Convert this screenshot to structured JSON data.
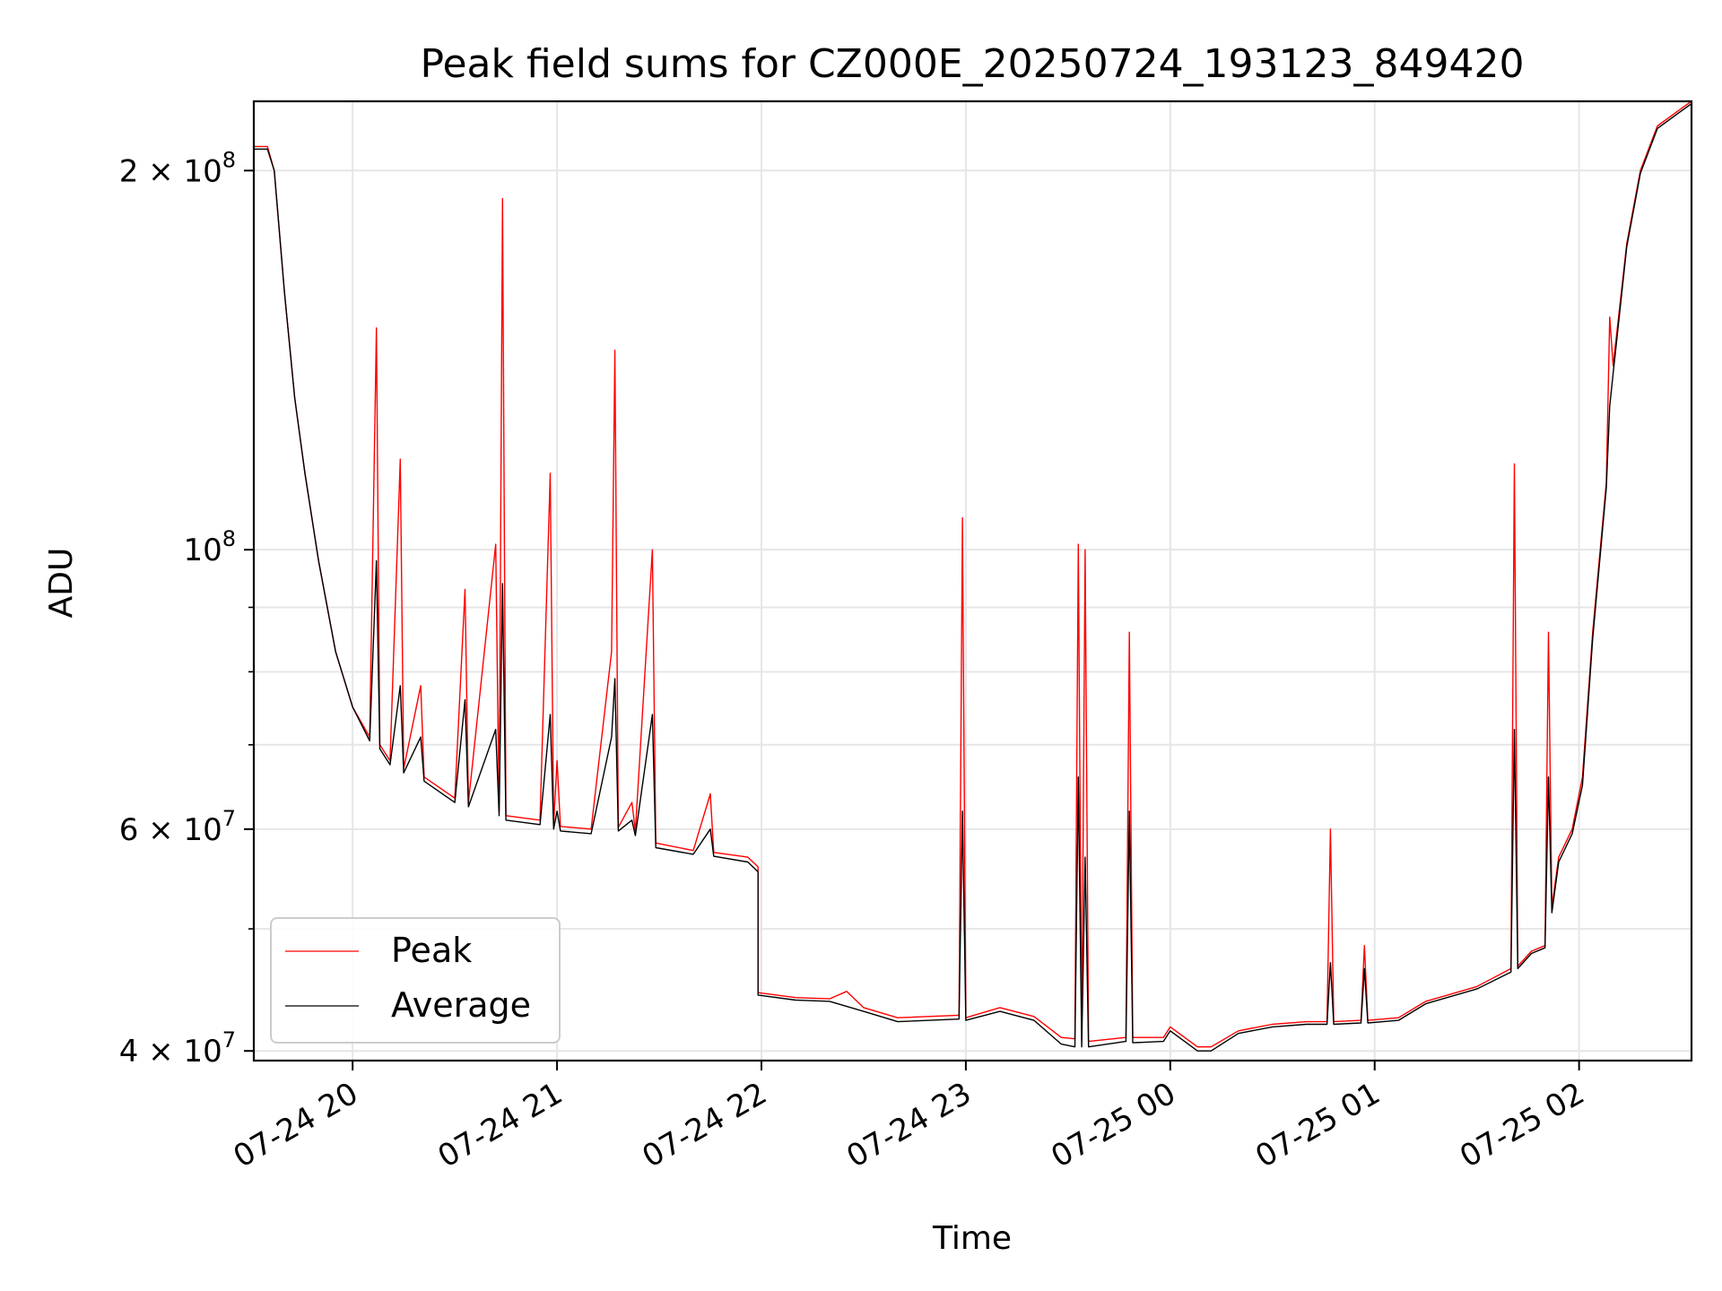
{
  "chart_data": {
    "type": "line",
    "title": "Peak field sums for CZ000E_20250724_193123_849420",
    "xlabel": "Time",
    "ylabel": "ADU",
    "y_scale": "log",
    "ylim": [
      39300000,
      227000000
    ],
    "xlim": [
      "2025-07-24 19:31",
      "2025-07-25 02:33"
    ],
    "grid": true,
    "legend_placement": "lower-left",
    "x_ticks": [
      {
        "t": "2025-07-24 20:00",
        "label": "07-24 20"
      },
      {
        "t": "2025-07-24 21:00",
        "label": "07-24 21"
      },
      {
        "t": "2025-07-24 22:00",
        "label": "07-24 22"
      },
      {
        "t": "2025-07-24 23:00",
        "label": "07-24 23"
      },
      {
        "t": "2025-07-25 00:00",
        "label": "07-25 00"
      },
      {
        "t": "2025-07-25 01:00",
        "label": "07-25 01"
      },
      {
        "t": "2025-07-25 02:00",
        "label": "07-25 02"
      }
    ],
    "y_major_ticks": [
      {
        "v": 40000000,
        "base": "4",
        "exp": "7"
      },
      {
        "v": 60000000,
        "base": "6",
        "exp": "7"
      },
      {
        "v": 100000000,
        "base": "",
        "exp": "8"
      },
      {
        "v": 200000000,
        "base": "2",
        "exp": "8"
      }
    ],
    "y_minor_ticks": [
      50000000,
      70000000,
      80000000,
      90000000
    ],
    "series": [
      {
        "name": "Peak",
        "color": "#ff0000",
        "points": [
          [
            "2025-07-24 19:31",
            209000000
          ],
          [
            "2025-07-24 19:35",
            209000000
          ],
          [
            "2025-07-24 19:37",
            200000000
          ],
          [
            "2025-07-24 19:40",
            160000000
          ],
          [
            "2025-07-24 19:43",
            132000000
          ],
          [
            "2025-07-24 19:46",
            115000000
          ],
          [
            "2025-07-24 19:50",
            98000000
          ],
          [
            "2025-07-24 19:55",
            83000000
          ],
          [
            "2025-07-24 20:00",
            75000000
          ],
          [
            "2025-07-24 20:05",
            71000000
          ],
          [
            "2025-07-24 20:07",
            150000000
          ],
          [
            "2025-07-24 20:08",
            70000000
          ],
          [
            "2025-07-24 20:11",
            68000000
          ],
          [
            "2025-07-24 20:14",
            118000000
          ],
          [
            "2025-07-24 20:15",
            67000000
          ],
          [
            "2025-07-24 20:20",
            78000000
          ],
          [
            "2025-07-24 20:21",
            66000000
          ],
          [
            "2025-07-24 20:30",
            63500000
          ],
          [
            "2025-07-24 20:33",
            93000000
          ],
          [
            "2025-07-24 20:34",
            63000000
          ],
          [
            "2025-07-24 20:42",
            101000000
          ],
          [
            "2025-07-24 20:43",
            62000000
          ],
          [
            "2025-07-24 20:44",
            190000000
          ],
          [
            "2025-07-24 20:45",
            61500000
          ],
          [
            "2025-07-24 20:55",
            61000000
          ],
          [
            "2025-07-24 20:58",
            115000000
          ],
          [
            "2025-07-24 20:59",
            60500000
          ],
          [
            "2025-07-24 21:00",
            68000000
          ],
          [
            "2025-07-24 21:01",
            60300000
          ],
          [
            "2025-07-24 21:10",
            60000000
          ],
          [
            "2025-07-24 21:16",
            83000000
          ],
          [
            "2025-07-24 21:17",
            144000000
          ],
          [
            "2025-07-24 21:18",
            60200000
          ],
          [
            "2025-07-24 21:22",
            63000000
          ],
          [
            "2025-07-24 21:23",
            59800000
          ],
          [
            "2025-07-24 21:28",
            100000000
          ],
          [
            "2025-07-24 21:29",
            58500000
          ],
          [
            "2025-07-24 21:40",
            57700000
          ],
          [
            "2025-07-24 21:45",
            64000000
          ],
          [
            "2025-07-24 21:46",
            57500000
          ],
          [
            "2025-07-24 21:56",
            57000000
          ],
          [
            "2025-07-24 21:59",
            56000000
          ],
          [
            "2025-07-24 21:59",
            44500000
          ],
          [
            "2025-07-24 22:10",
            44100000
          ],
          [
            "2025-07-24 22:20",
            44000000
          ],
          [
            "2025-07-24 22:25",
            44600000
          ],
          [
            "2025-07-24 22:30",
            43300000
          ],
          [
            "2025-07-24 22:40",
            42500000
          ],
          [
            "2025-07-24 22:58",
            42700000
          ],
          [
            "2025-07-24 22:59",
            106000000
          ],
          [
            "2025-07-24 23:00",
            42500000
          ],
          [
            "2025-07-24 23:10",
            43300000
          ],
          [
            "2025-07-24 23:20",
            42600000
          ],
          [
            "2025-07-24 23:28",
            41000000
          ],
          [
            "2025-07-24 23:32",
            40900000
          ],
          [
            "2025-07-24 23:33",
            101000000
          ],
          [
            "2025-07-24 23:34",
            40800000
          ],
          [
            "2025-07-24 23:35",
            100000000
          ],
          [
            "2025-07-24 23:36",
            40700000
          ],
          [
            "2025-07-24 23:47",
            41000000
          ],
          [
            "2025-07-24 23:48",
            86000000
          ],
          [
            "2025-07-24 23:49",
            41000000
          ],
          [
            "2025-07-24 23:58",
            41000000
          ],
          [
            "2025-07-25 00:00",
            41800000
          ],
          [
            "2025-07-25 00:08",
            40300000
          ],
          [
            "2025-07-25 00:12",
            40300000
          ],
          [
            "2025-07-25 00:20",
            41500000
          ],
          [
            "2025-07-25 00:30",
            42000000
          ],
          [
            "2025-07-25 00:40",
            42200000
          ],
          [
            "2025-07-25 00:46",
            42200000
          ],
          [
            "2025-07-25 00:47",
            60000000
          ],
          [
            "2025-07-25 00:48",
            42200000
          ],
          [
            "2025-07-25 00:56",
            42300000
          ],
          [
            "2025-07-25 00:57",
            48500000
          ],
          [
            "2025-07-25 00:58",
            42300000
          ],
          [
            "2025-07-25 01:07",
            42500000
          ],
          [
            "2025-07-25 01:15",
            43800000
          ],
          [
            "2025-07-25 01:30",
            45000000
          ],
          [
            "2025-07-25 01:40",
            46500000
          ],
          [
            "2025-07-25 01:41",
            117000000
          ],
          [
            "2025-07-25 01:42",
            46700000
          ],
          [
            "2025-07-25 01:46",
            48000000
          ],
          [
            "2025-07-25 01:50",
            48500000
          ],
          [
            "2025-07-25 01:51",
            86000000
          ],
          [
            "2025-07-25 01:52",
            52000000
          ],
          [
            "2025-07-25 01:54",
            57000000
          ],
          [
            "2025-07-25 01:58",
            60000000
          ],
          [
            "2025-07-25 02:01",
            66000000
          ],
          [
            "2025-07-25 02:04",
            86000000
          ],
          [
            "2025-07-25 02:08",
            113000000
          ],
          [
            "2025-07-25 02:09",
            153000000
          ],
          [
            "2025-07-25 02:10",
            140000000
          ],
          [
            "2025-07-25 02:14",
            175000000
          ],
          [
            "2025-07-25 02:18",
            200000000
          ],
          [
            "2025-07-25 02:23",
            217000000
          ],
          [
            "2025-07-25 02:30",
            224000000
          ],
          [
            "2025-07-25 02:33",
            227000000
          ]
        ]
      },
      {
        "name": "Average",
        "color": "#000000",
        "points": [
          [
            "2025-07-24 19:31",
            208000000
          ],
          [
            "2025-07-24 19:35",
            208000000
          ],
          [
            "2025-07-24 19:37",
            200000000
          ],
          [
            "2025-07-24 19:40",
            160000000
          ],
          [
            "2025-07-24 19:43",
            132000000
          ],
          [
            "2025-07-24 19:46",
            115000000
          ],
          [
            "2025-07-24 19:50",
            98000000
          ],
          [
            "2025-07-24 19:55",
            83000000
          ],
          [
            "2025-07-24 20:00",
            75000000
          ],
          [
            "2025-07-24 20:05",
            70500000
          ],
          [
            "2025-07-24 20:07",
            98000000
          ],
          [
            "2025-07-24 20:08",
            69500000
          ],
          [
            "2025-07-24 20:11",
            67500000
          ],
          [
            "2025-07-24 20:14",
            78000000
          ],
          [
            "2025-07-24 20:15",
            66500000
          ],
          [
            "2025-07-24 20:20",
            71000000
          ],
          [
            "2025-07-24 20:21",
            65500000
          ],
          [
            "2025-07-24 20:30",
            63000000
          ],
          [
            "2025-07-24 20:33",
            76000000
          ],
          [
            "2025-07-24 20:34",
            62500000
          ],
          [
            "2025-07-24 20:42",
            72000000
          ],
          [
            "2025-07-24 20:43",
            61500000
          ],
          [
            "2025-07-24 20:44",
            94000000
          ],
          [
            "2025-07-24 20:45",
            61000000
          ],
          [
            "2025-07-24 20:55",
            60500000
          ],
          [
            "2025-07-24 20:58",
            74000000
          ],
          [
            "2025-07-24 20:59",
            60000000
          ],
          [
            "2025-07-24 21:00",
            62000000
          ],
          [
            "2025-07-24 21:01",
            59800000
          ],
          [
            "2025-07-24 21:10",
            59500000
          ],
          [
            "2025-07-24 21:16",
            71000000
          ],
          [
            "2025-07-24 21:17",
            79000000
          ],
          [
            "2025-07-24 21:18",
            59800000
          ],
          [
            "2025-07-24 21:22",
            61000000
          ],
          [
            "2025-07-24 21:23",
            59300000
          ],
          [
            "2025-07-24 21:28",
            74000000
          ],
          [
            "2025-07-24 21:29",
            58000000
          ],
          [
            "2025-07-24 21:40",
            57300000
          ],
          [
            "2025-07-24 21:45",
            60000000
          ],
          [
            "2025-07-24 21:46",
            57100000
          ],
          [
            "2025-07-24 21:56",
            56500000
          ],
          [
            "2025-07-24 21:59",
            55500000
          ],
          [
            "2025-07-24 21:59",
            44300000
          ],
          [
            "2025-07-24 22:10",
            43900000
          ],
          [
            "2025-07-24 22:20",
            43800000
          ],
          [
            "2025-07-24 22:30",
            43000000
          ],
          [
            "2025-07-24 22:40",
            42200000
          ],
          [
            "2025-07-24 22:58",
            42400000
          ],
          [
            "2025-07-24 22:59",
            62000000
          ],
          [
            "2025-07-24 23:00",
            42300000
          ],
          [
            "2025-07-24 23:10",
            43000000
          ],
          [
            "2025-07-24 23:20",
            42300000
          ],
          [
            "2025-07-24 23:28",
            40500000
          ],
          [
            "2025-07-24 23:32",
            40300000
          ],
          [
            "2025-07-24 23:33",
            66000000
          ],
          [
            "2025-07-24 23:34",
            40300000
          ],
          [
            "2025-07-24 23:35",
            57000000
          ],
          [
            "2025-07-24 23:36",
            40300000
          ],
          [
            "2025-07-24 23:47",
            40700000
          ],
          [
            "2025-07-24 23:48",
            62000000
          ],
          [
            "2025-07-24 23:49",
            40600000
          ],
          [
            "2025-07-24 23:58",
            40700000
          ],
          [
            "2025-07-25 00:00",
            41500000
          ],
          [
            "2025-07-25 00:08",
            40000000
          ],
          [
            "2025-07-25 00:12",
            40000000
          ],
          [
            "2025-07-25 00:20",
            41300000
          ],
          [
            "2025-07-25 00:30",
            41800000
          ],
          [
            "2025-07-25 00:40",
            42000000
          ],
          [
            "2025-07-25 00:46",
            42000000
          ],
          [
            "2025-07-25 00:47",
            47000000
          ],
          [
            "2025-07-25 00:48",
            42000000
          ],
          [
            "2025-07-25 00:56",
            42100000
          ],
          [
            "2025-07-25 00:57",
            46500000
          ],
          [
            "2025-07-25 00:58",
            42100000
          ],
          [
            "2025-07-25 01:07",
            42300000
          ],
          [
            "2025-07-25 01:15",
            43600000
          ],
          [
            "2025-07-25 01:30",
            44800000
          ],
          [
            "2025-07-25 01:40",
            46200000
          ],
          [
            "2025-07-25 01:41",
            72000000
          ],
          [
            "2025-07-25 01:42",
            46500000
          ],
          [
            "2025-07-25 01:46",
            47800000
          ],
          [
            "2025-07-25 01:50",
            48300000
          ],
          [
            "2025-07-25 01:51",
            66000000
          ],
          [
            "2025-07-25 01:52",
            51500000
          ],
          [
            "2025-07-25 01:54",
            56500000
          ],
          [
            "2025-07-25 01:58",
            59500000
          ],
          [
            "2025-07-25 02:01",
            65000000
          ],
          [
            "2025-07-25 02:04",
            85000000
          ],
          [
            "2025-07-25 02:08",
            112000000
          ],
          [
            "2025-07-25 02:09",
            130000000
          ],
          [
            "2025-07-25 02:10",
            138000000
          ],
          [
            "2025-07-25 02:14",
            174000000
          ],
          [
            "2025-07-25 02:18",
            199000000
          ],
          [
            "2025-07-25 02:23",
            216000000
          ],
          [
            "2025-07-25 02:30",
            223000000
          ],
          [
            "2025-07-25 02:33",
            226000000
          ]
        ]
      }
    ]
  }
}
